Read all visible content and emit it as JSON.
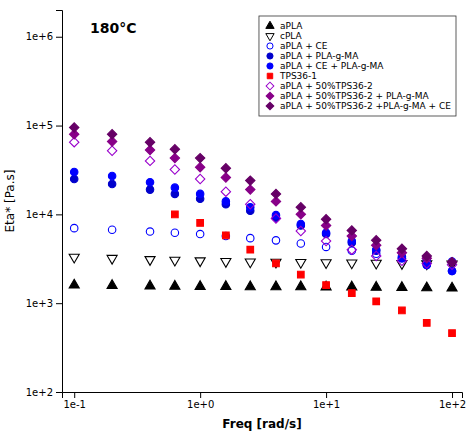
{
  "chart_data": {
    "type": "scatter",
    "annotation": "180°C",
    "xlabel": "Freq [rad/s]",
    "ylabel": "Eta* [Pa.s]",
    "log": true,
    "grid": false,
    "legend": "upper right",
    "xlim": [
      0.08,
      120
    ],
    "ylim": [
      100,
      2000000
    ],
    "xticks": [
      {
        "value": 0.1,
        "label": "1e-1"
      },
      {
        "value": 1,
        "label": "1e+0"
      },
      {
        "value": 10,
        "label": "1e+1"
      },
      {
        "value": 100,
        "label": "1e+2"
      }
    ],
    "yticks": [
      {
        "value": 100,
        "label": "1e+2"
      },
      {
        "value": 1000,
        "label": "1e+3"
      },
      {
        "value": 10000,
        "label": "1e+4"
      },
      {
        "value": 100000,
        "label": "1e+5"
      },
      {
        "value": 1000000,
        "label": "1e+6"
      }
    ],
    "series": [
      {
        "name": "aPLA",
        "color": "black",
        "marker": "triangle-up",
        "x": [
          0.1,
          0.2,
          0.4,
          0.63,
          1.0,
          1.6,
          2.5,
          4.0,
          6.3,
          10.0,
          16.0,
          25.0,
          40.0,
          63.0,
          100.0
        ],
        "values": [
          1600,
          1580,
          1560,
          1550,
          1540,
          1540,
          1530,
          1530,
          1530,
          1520,
          1520,
          1510,
          1500,
          1490,
          1480
        ]
      },
      {
        "name": "cPLA",
        "color": "black",
        "marker": "triangle-down-open",
        "x": [
          0.1,
          0.2,
          0.4,
          0.63,
          1.0,
          1.6,
          2.5,
          4.0,
          6.3,
          10.0,
          16.0,
          25.0,
          40.0,
          63.0,
          100.0
        ],
        "values": [
          3300,
          3200,
          3100,
          3050,
          3000,
          2950,
          2920,
          2900,
          2880,
          2860,
          2840,
          2820,
          2800,
          2780,
          2760
        ]
      },
      {
        "name": "aPLA + CE",
        "color": "#0000ff",
        "marker": "circle-open",
        "x": [
          0.1,
          0.2,
          0.4,
          0.63,
          1.0,
          1.6,
          2.5,
          4.0,
          6.3,
          10.0,
          16.0,
          25.0,
          40.0,
          63.0,
          100.0
        ],
        "values": [
          7000,
          6700,
          6400,
          6200,
          6000,
          5700,
          5400,
          5100,
          4700,
          4300,
          3900,
          3600,
          3350,
          3100,
          2950
        ]
      },
      {
        "name": "aPLA + PLA-g-MA",
        "color": "#0000cc",
        "marker": "circle",
        "x": [
          0.1,
          0.2,
          0.4,
          0.63,
          1.0,
          1.6,
          2.5,
          4.0,
          6.3,
          10.0,
          16.0,
          25.0,
          40.0,
          63.0,
          100.0
        ],
        "values": [
          25000,
          22000,
          19000,
          17000,
          15000,
          13000,
          11000,
          9200,
          7500,
          6000,
          4800,
          3900,
          3200,
          2700,
          2300
        ]
      },
      {
        "name": "aPLA + CE + PLA-g-MA",
        "color": "#0000ff",
        "marker": "circle",
        "x": [
          0.1,
          0.2,
          0.4,
          0.63,
          1.0,
          1.6,
          2.5,
          4.0,
          6.3,
          10.0,
          16.0,
          25.0,
          40.0,
          63.0,
          100.0
        ],
        "values": [
          30000,
          27000,
          23000,
          20000,
          17000,
          14000,
          12000,
          9800,
          7800,
          6200,
          5000,
          4000,
          3200,
          2700,
          2300
        ]
      },
      {
        "name": "TPS36-1",
        "color": "red",
        "marker": "square",
        "x": [
          0.63,
          1.0,
          1.6,
          2.5,
          4.0,
          6.3,
          10.0,
          16.0,
          25.0,
          40.0,
          63.0,
          100.0
        ],
        "values": [
          10000,
          8000,
          5800,
          4000,
          2800,
          2100,
          1600,
          1300,
          1050,
          830,
          600,
          460
        ]
      },
      {
        "name": "aPLA + 50%TPS36-2",
        "color": "#9900cc",
        "marker": "diamond-open",
        "x": [
          0.1,
          0.2,
          0.4,
          0.63,
          1.0,
          1.6,
          2.5,
          4.0,
          6.3,
          10.0,
          16.0,
          25.0,
          40.0,
          63.0,
          100.0
        ],
        "values": [
          65000,
          52000,
          40000,
          32000,
          25000,
          18000,
          13000,
          9000,
          6500,
          5000,
          4000,
          3400,
          3000,
          2800,
          2700
        ]
      },
      {
        "name": "aPLA + 50%TPS36-2 + PLA-g-MA",
        "color": "#880088",
        "marker": "diamond",
        "x": [
          0.1,
          0.2,
          0.4,
          0.63,
          1.0,
          1.6,
          2.5,
          4.0,
          6.3,
          10.0,
          16.0,
          25.0,
          40.0,
          63.0,
          100.0
        ],
        "values": [
          80000,
          66000,
          53000,
          43000,
          34000,
          26000,
          19000,
          14000,
          10000,
          7500,
          5700,
          4500,
          3700,
          3200,
          2900
        ]
      },
      {
        "name": "aPLA + 50%TPS36-2 +PLA-g-MA + CE",
        "color": "#660066",
        "marker": "diamond",
        "x": [
          0.1,
          0.2,
          0.4,
          0.63,
          1.0,
          1.6,
          2.5,
          4.0,
          6.3,
          10.0,
          16.0,
          25.0,
          40.0,
          63.0,
          100.0
        ],
        "values": [
          95000,
          80000,
          65000,
          54000,
          43000,
          33000,
          24000,
          17000,
          12000,
          8800,
          6600,
          5100,
          4100,
          3400,
          2900
        ]
      }
    ]
  }
}
